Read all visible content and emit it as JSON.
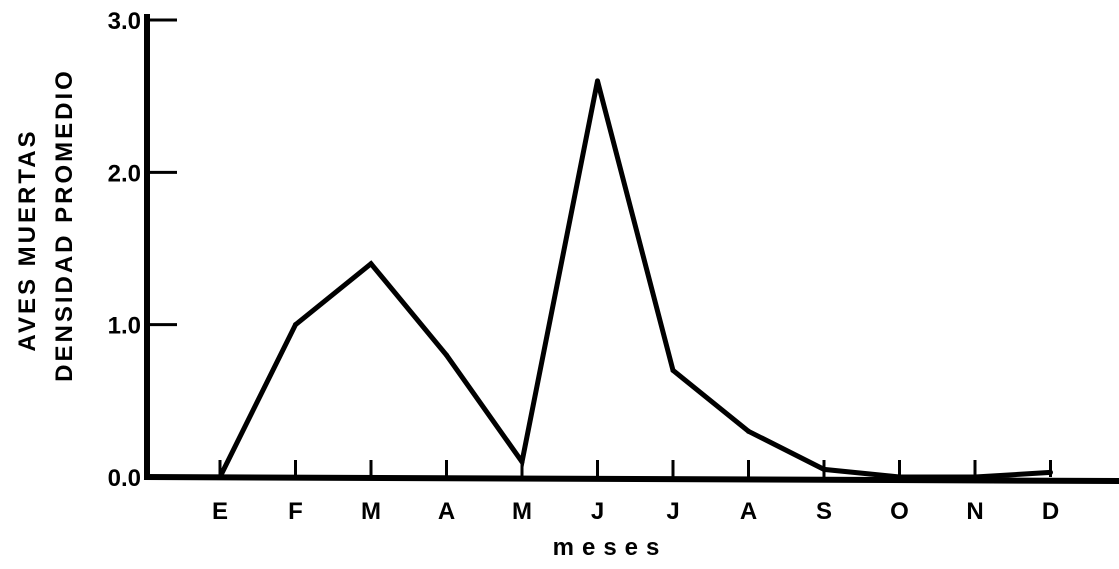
{
  "chart_data": {
    "type": "line",
    "categories": [
      "E",
      "F",
      "M",
      "A",
      "M",
      "J",
      "J",
      "A",
      "S",
      "O",
      "N",
      "D"
    ],
    "series": [
      {
        "values": [
          0.0,
          1.0,
          1.4,
          0.8,
          0.1,
          2.6,
          0.7,
          0.3,
          0.05,
          0.0,
          0.0,
          0.03
        ]
      }
    ],
    "ylim": [
      0,
      3.0
    ],
    "yticks": [
      "0.0",
      "1.0",
      "2.0",
      "3.0"
    ],
    "ylabel_line1": "AVES MUERTAS",
    "ylabel_line2": "DENSIDAD PROMEDIO",
    "xlabel": "meses",
    "grid": false,
    "colors": {
      "line": "#000000",
      "axis": "#000000"
    }
  }
}
